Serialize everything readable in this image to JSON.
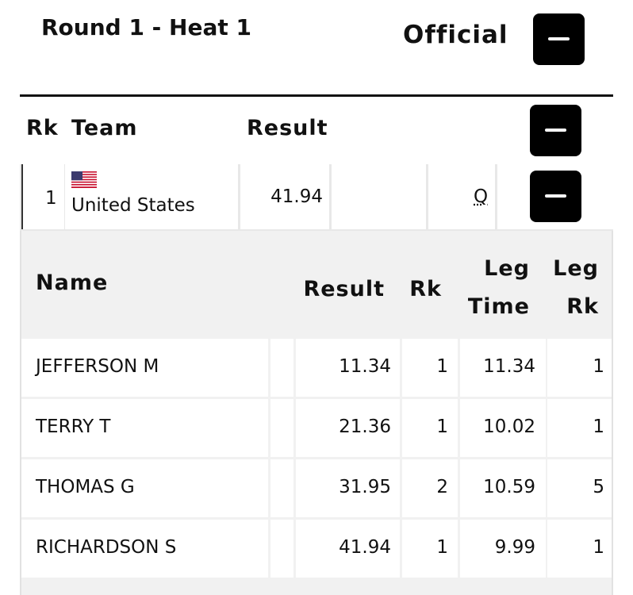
{
  "header": {
    "title": "Round 1 - Heat 1",
    "status": "Official"
  },
  "team_table": {
    "columns": [
      "Rk",
      "Team",
      "Result"
    ],
    "rows": [
      {
        "rank": "1",
        "team": "United States",
        "result": "41.94",
        "qualifier": "Q"
      }
    ]
  },
  "leg_table": {
    "columns": [
      "Name",
      "Result",
      "Rk",
      "Leg Time",
      "Leg Rk"
    ],
    "rows": [
      [
        "JEFFERSON M",
        "11.34",
        "1",
        "11.34",
        "1"
      ],
      [
        "TERRY T",
        "21.36",
        "1",
        "10.02",
        "1"
      ],
      [
        "THOMAS G",
        "31.95",
        "2",
        "10.59",
        "5"
      ],
      [
        "RICHARDSON S",
        "41.94",
        "1",
        "9.99",
        "1"
      ]
    ]
  }
}
